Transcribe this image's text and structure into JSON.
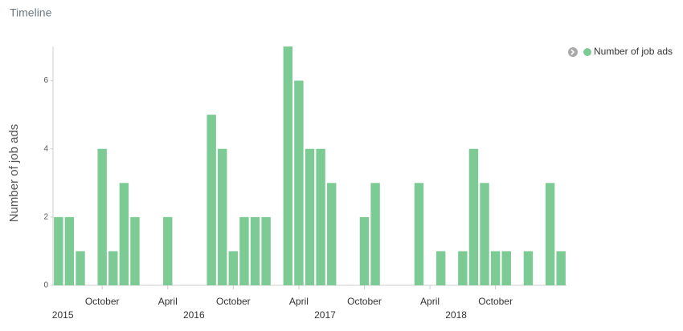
{
  "chart_data": {
    "type": "bar",
    "title": "Timeline",
    "ylabel": "Number of job ads",
    "categories": [
      null,
      null,
      null,
      null,
      "October",
      null,
      null,
      null,
      null,
      null,
      "April",
      null,
      null,
      null,
      null,
      null,
      "October",
      null,
      null,
      null,
      null,
      null,
      "April",
      null,
      null,
      null,
      null,
      null,
      "October",
      null,
      null,
      null,
      null,
      null,
      "April",
      null,
      null,
      null,
      null,
      null,
      "October",
      null,
      null,
      null,
      null,
      null,
      null
    ],
    "year_labels": [
      "2015",
      null,
      null,
      null,
      null,
      null,
      null,
      null,
      null,
      null,
      null,
      null,
      "2016",
      null,
      null,
      null,
      null,
      null,
      null,
      null,
      null,
      null,
      null,
      null,
      "2017",
      null,
      null,
      null,
      null,
      null,
      null,
      null,
      null,
      null,
      null,
      null,
      "2018",
      null,
      null,
      null,
      null,
      null,
      null,
      null,
      null,
      null,
      null
    ],
    "series": [
      {
        "name": "Number of job ads",
        "color": "#7dcb94",
        "values": [
          2,
          2,
          1,
          0,
          4,
          1,
          3,
          2,
          0,
          0,
          2,
          0,
          0,
          0,
          5,
          4,
          1,
          2,
          2,
          2,
          0,
          7,
          6,
          4,
          4,
          3,
          0,
          0,
          2,
          3,
          0,
          0,
          0,
          3,
          0,
          1,
          0,
          1,
          4,
          3,
          1,
          1,
          0,
          1,
          0,
          3,
          1
        ]
      }
    ],
    "ylim": [
      0,
      7
    ],
    "yticks": [
      0,
      2,
      4,
      6
    ],
    "grid": false,
    "legend": "top-right"
  }
}
